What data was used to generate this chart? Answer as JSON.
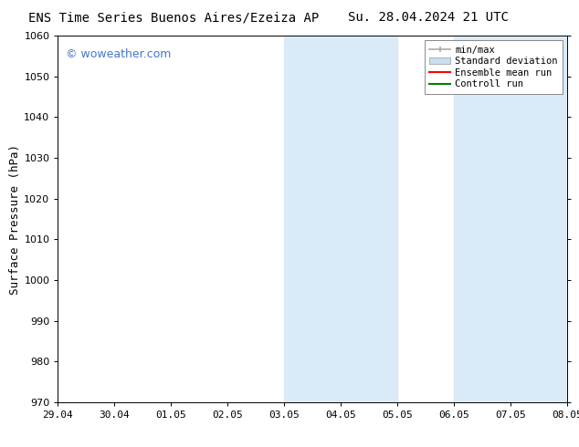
{
  "title_left": "ENS Time Series Buenos Aires/Ezeiza AP",
  "title_right": "Su. 28.04.2024 21 UTC",
  "ylabel": "Surface Pressure (hPa)",
  "ylim": [
    970,
    1060
  ],
  "yticks": [
    970,
    980,
    990,
    1000,
    1010,
    1020,
    1030,
    1040,
    1050,
    1060
  ],
  "xtick_labels": [
    "29.04",
    "30.04",
    "01.05",
    "02.05",
    "03.05",
    "04.05",
    "05.05",
    "06.05",
    "07.05",
    "08.05"
  ],
  "xtick_positions": [
    0,
    1,
    2,
    3,
    4,
    5,
    6,
    7,
    8,
    9
  ],
  "shaded_bands": [
    {
      "x_start": 4.0,
      "x_end": 6.0,
      "color": "#daeaf7"
    },
    {
      "x_start": 7.0,
      "x_end": 9.0,
      "color": "#daeaf7"
    }
  ],
  "watermark_text": "© woweather.com",
  "watermark_color": "#4477cc",
  "bg_color": "#ffffff",
  "plot_bg_color": "#ffffff",
  "title_fontsize": 10,
  "axis_fontsize": 9,
  "tick_fontsize": 8,
  "legend_fontsize": 7.5,
  "minmax_color": "#aaaaaa",
  "std_dev_color": "#c8dff0",
  "ensemble_color": "red",
  "control_color": "green"
}
